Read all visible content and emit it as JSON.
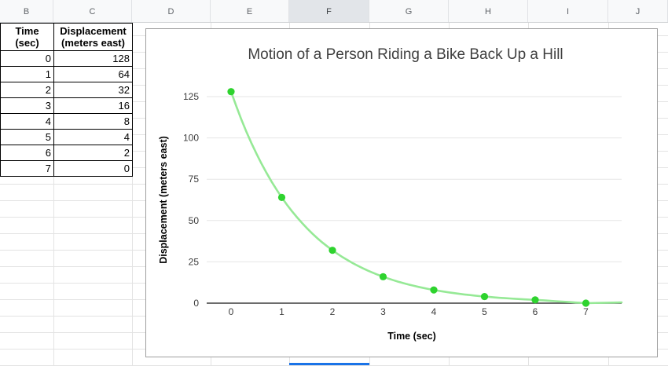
{
  "sheet": {
    "column_headers": [
      "B",
      "C",
      "D",
      "E",
      "F",
      "G",
      "H",
      "I",
      "J"
    ],
    "selected_column": "F"
  },
  "table": {
    "col_headers": [
      "Time\n(sec)",
      "Displacement\n(meters east)"
    ],
    "rows": [
      [
        "0",
        "128"
      ],
      [
        "1",
        "64"
      ],
      [
        "2",
        "32"
      ],
      [
        "3",
        "16"
      ],
      [
        "4",
        "8"
      ],
      [
        "5",
        "4"
      ],
      [
        "6",
        "2"
      ],
      [
        "7",
        "0"
      ]
    ]
  },
  "chart_data": {
    "type": "line",
    "title": "Motion of a Person Riding a Bike Back Up a Hill",
    "xlabel": "Time (sec)",
    "ylabel": "Displacement (meters east)",
    "x": [
      0,
      1,
      2,
      3,
      4,
      5,
      6,
      7
    ],
    "series": [
      {
        "name": "Displacement (meters east)",
        "values": [
          128,
          64,
          32,
          16,
          8,
          4,
          2,
          0
        ]
      }
    ],
    "xticks": [
      "0",
      "1",
      "2",
      "3",
      "4",
      "5",
      "6",
      "7"
    ],
    "yticks": [
      0,
      25,
      50,
      75,
      100,
      125
    ],
    "xlim": [
      -0.48,
      7.7
    ],
    "ylim": [
      0,
      131
    ],
    "grid": true,
    "smooth_line": true,
    "legend_position": "none",
    "line_color": "#96e996",
    "point_color": "#2ed32e"
  },
  "colors": {
    "selection_blue": "#1a73e8",
    "grid_line": "#e3e3e3",
    "chart_border": "#9e9e9e",
    "axis_line": "#3b3b3b",
    "chart_grid": "#e6e6e6",
    "header_bg": "#f8f9fa",
    "header_selected_bg": "#e2e5e9"
  }
}
